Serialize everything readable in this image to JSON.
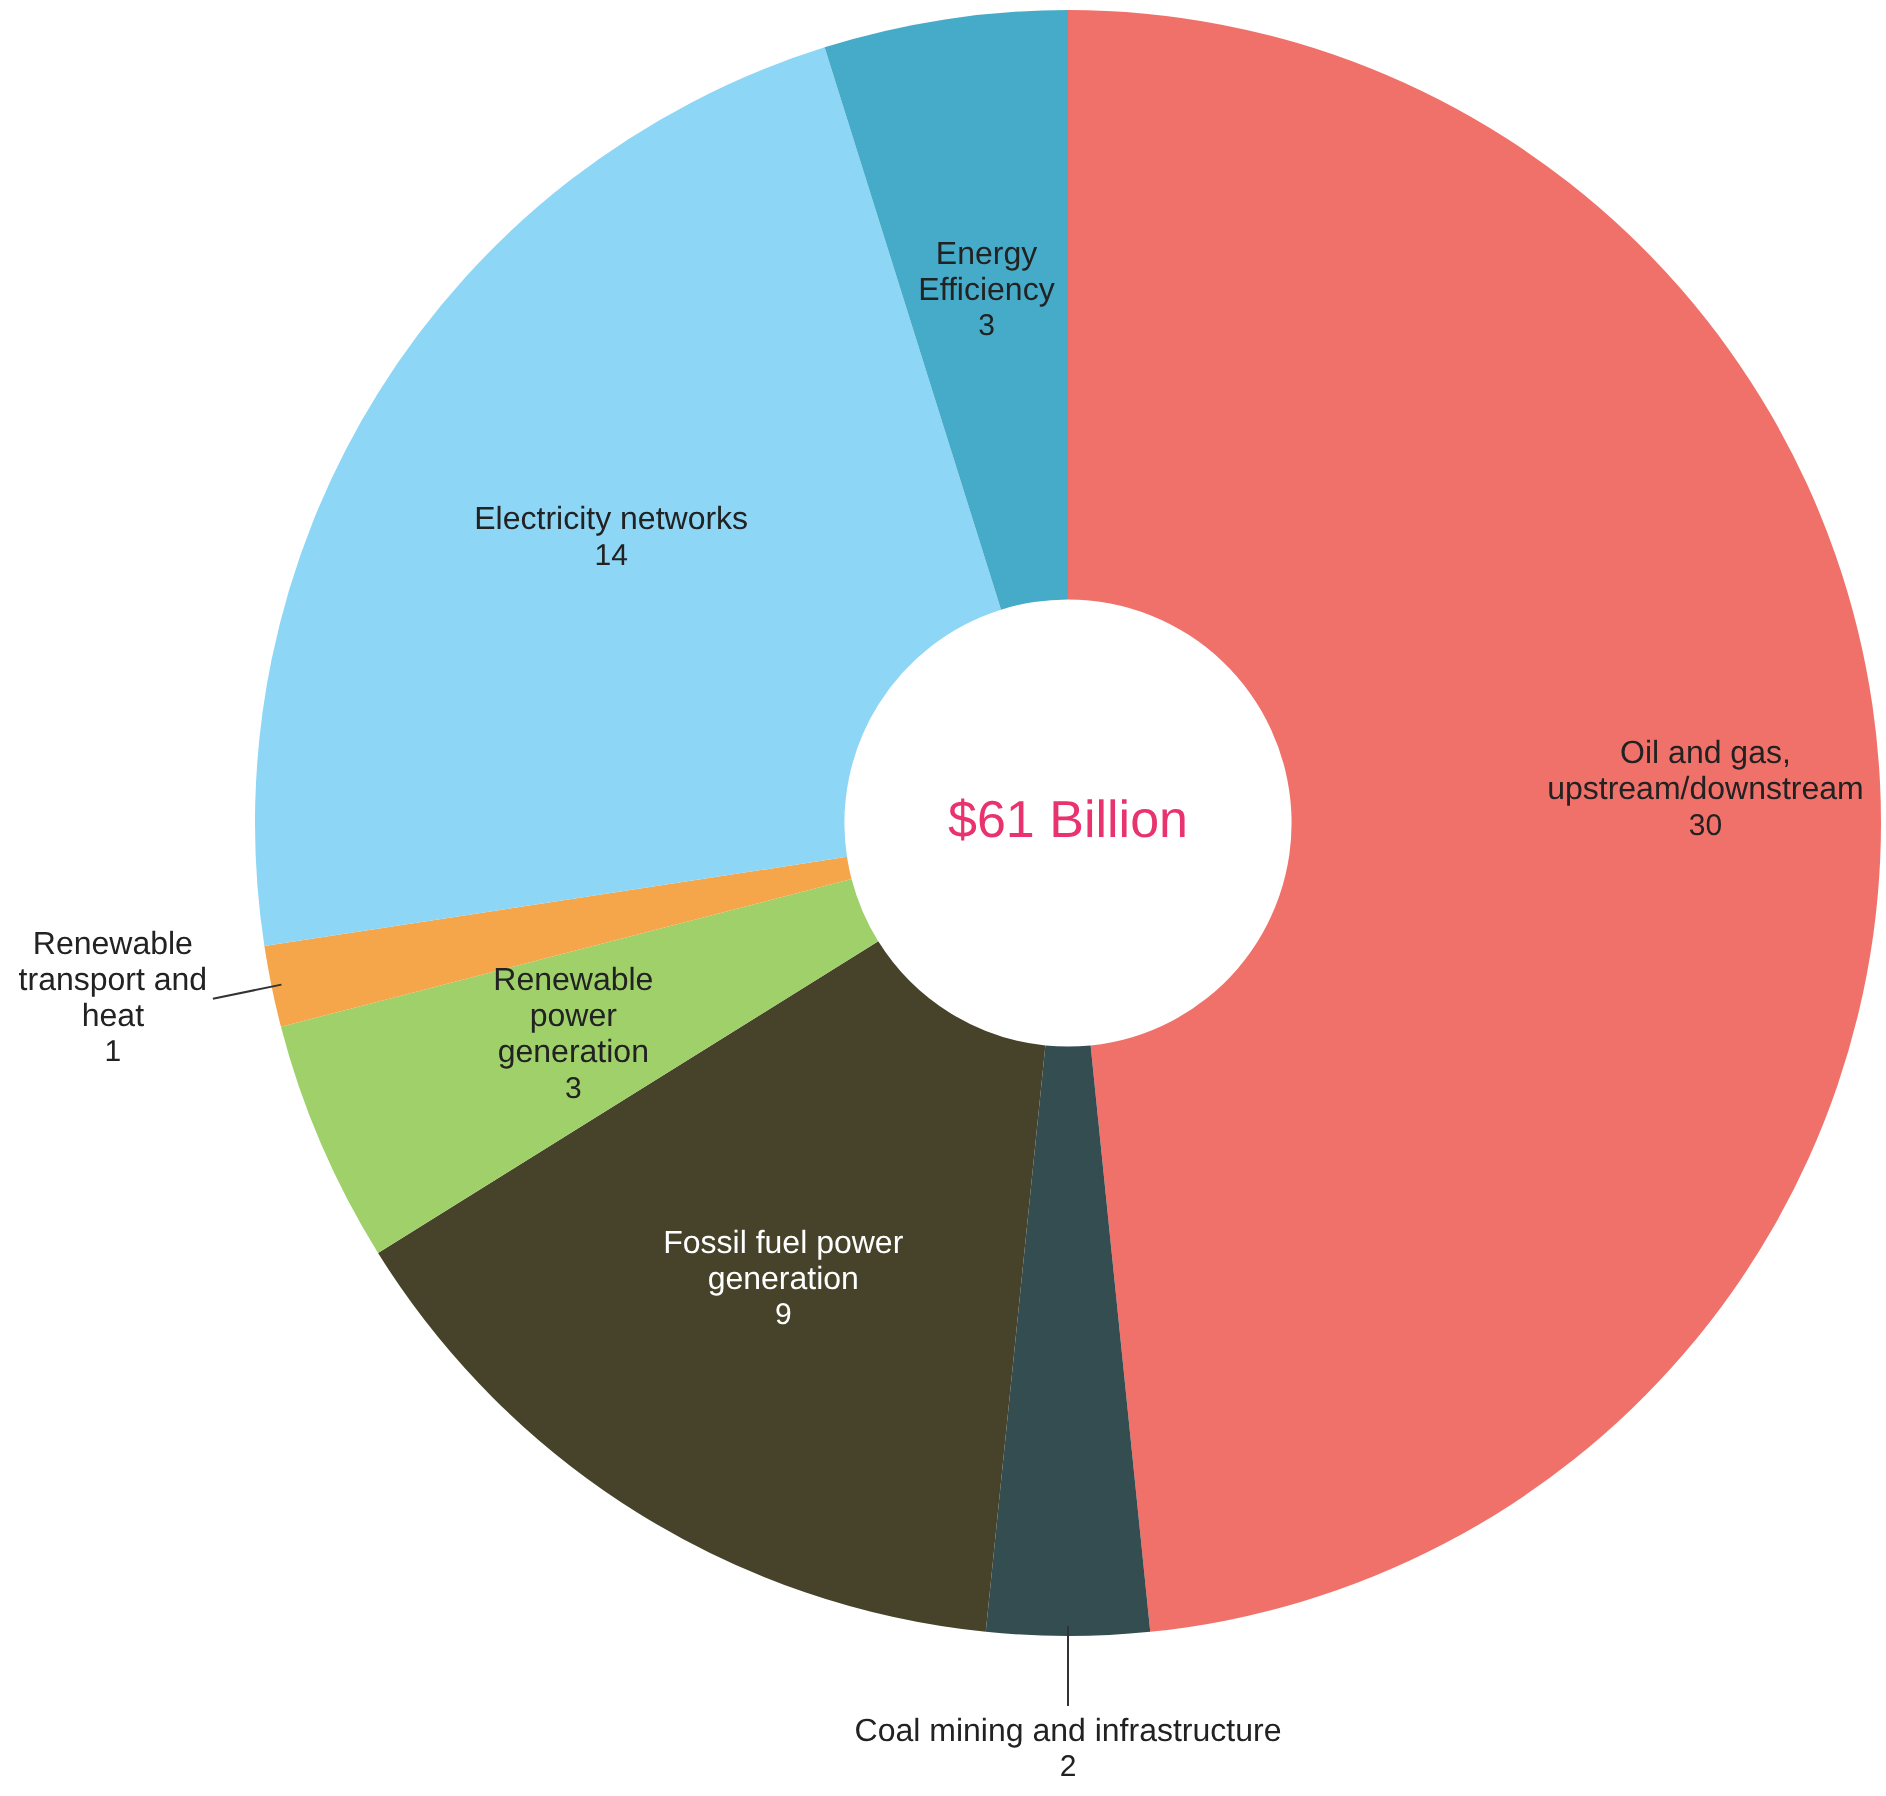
{
  "chart_data": {
    "type": "donut",
    "title": "$61 Billion",
    "categories": [
      "Oil and gas, upstream/downstream",
      "Coal mining and infrastructure",
      "Fossil fuel power generation",
      "Renewable power generation",
      "Renewable transport and heat",
      "Electricity networks",
      "Energy Efficiency"
    ],
    "values": [
      30,
      2,
      9,
      3,
      1,
      14,
      3
    ],
    "colors": [
      "#f0716a",
      "#344d50",
      "#46432a",
      "#9fd06a",
      "#f5a54a",
      "#8dd6f5",
      "#46abc8"
    ],
    "data_labels": true,
    "legend": false
  }
}
